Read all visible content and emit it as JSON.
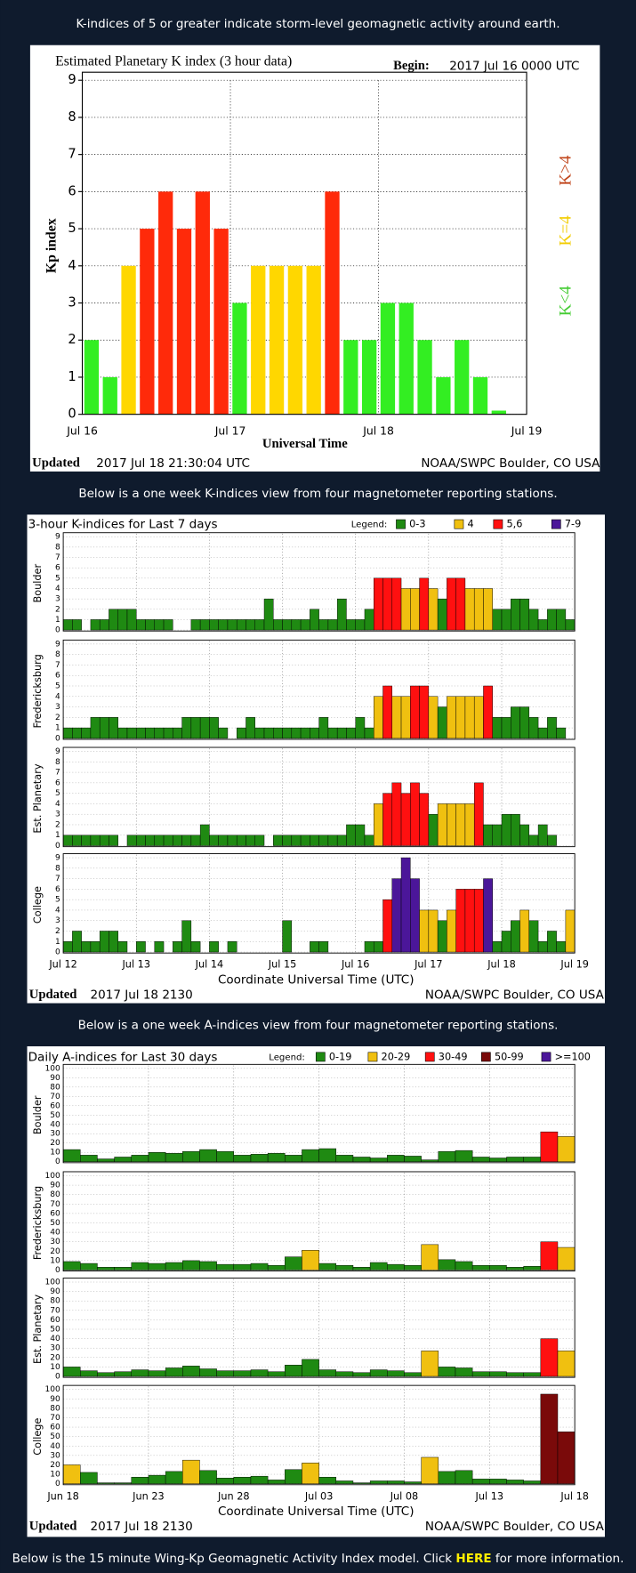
{
  "captions": [
    "K-indices of 5 or greater indicate storm-level geomagnetic activity around earth.",
    "Below is a one week K-indices view from four magnetometer reporting stations.",
    "Below is a one week A-indices view from four magnetometer reporting stations."
  ],
  "footer_note": {
    "before": "Below is the 15 minute Wing-Kp Geomagnetic Activity Index model. Click ",
    "link": "HERE",
    "after": " for more information."
  },
  "chart_data": [
    {
      "type": "bar",
      "title": "Estimated Planetary K index (3 hour data)",
      "begin_label": "Begin:",
      "begin": "2017 Jul 16 0000 UTC",
      "ylabel": "Kp index",
      "xlabel": "Universal Time",
      "xtick_labels": [
        "Jul 16",
        "Jul 17",
        "Jul 18",
        "Jul 19"
      ],
      "values": [
        2,
        1,
        4,
        5,
        6,
        5,
        6,
        5,
        3,
        4,
        4,
        4,
        4,
        6,
        2,
        2,
        3,
        3,
        2,
        1,
        2,
        1,
        0.1,
        null
      ],
      "colors": [
        "#33ee22",
        "#33ee22",
        "#ffd700",
        "#ff2a0a",
        "#ff2a0a",
        "#ff2a0a",
        "#ff2a0a",
        "#ff2a0a",
        "#33ee22",
        "#ffd700",
        "#ffd700",
        "#ffd700",
        "#ffd700",
        "#ff2a0a",
        "#33ee22",
        "#33ee22",
        "#33ee22",
        "#33ee22",
        "#33ee22",
        "#33ee22",
        "#33ee22",
        "#33ee22",
        "#33ee22",
        "#33ee22"
      ],
      "legend": [
        {
          "label": "K<4",
          "color": "#44cc33"
        },
        {
          "label": "K=4",
          "color": "#f2cc00"
        },
        {
          "label": "K>4",
          "color": "#c0441a"
        }
      ],
      "ylim": [
        0,
        9
      ],
      "yticks": [
        0,
        1,
        2,
        3,
        4,
        5,
        6,
        7,
        8,
        9
      ],
      "grid": true,
      "footer_label": "Updated",
      "footer_date": "2017 Jul 18 21:30:04 UTC",
      "footer_right": "NOAA/SWPC Boulder, CO USA"
    },
    {
      "type": "panel-bar",
      "title": "3-hour K-indices for Last 7 days",
      "legend_title": "Legend:",
      "legend": [
        {
          "label": "0-3",
          "color": "#1f8a12"
        },
        {
          "label": "4",
          "color": "#f0c010"
        },
        {
          "label": "5,6",
          "color": "#ff1010"
        },
        {
          "label": "7-9",
          "color": "#4b1699"
        }
      ],
      "xtick_labels": [
        "Jul 12",
        "Jul 13",
        "Jul 14",
        "Jul 15",
        "Jul 16",
        "Jul 17",
        "Jul 18",
        "Jul 19"
      ],
      "xlabel": "Coordinate Universal Time (UTC)",
      "ylim": [
        0,
        9
      ],
      "yticks": [
        0,
        1,
        2,
        3,
        4,
        5,
        6,
        7,
        8,
        9
      ],
      "grid": true,
      "series": [
        {
          "name": "Boulder",
          "values": [
            1,
            1,
            0,
            1,
            1,
            2,
            2,
            2,
            1,
            1,
            1,
            1,
            0,
            0,
            1,
            1,
            1,
            1,
            1,
            1,
            1,
            1,
            3,
            1,
            1,
            1,
            1,
            2,
            1,
            1,
            3,
            1,
            1,
            2,
            5,
            5,
            5,
            4,
            4,
            5,
            4,
            3,
            5,
            5,
            4,
            4,
            4,
            2,
            2,
            3,
            3,
            2,
            1,
            2,
            2,
            1
          ]
        },
        {
          "name": "Fredericksburg",
          "values": [
            1,
            1,
            1,
            2,
            2,
            2,
            1,
            1,
            1,
            1,
            1,
            1,
            1,
            2,
            2,
            2,
            2,
            1,
            0,
            1,
            2,
            1,
            1,
            1,
            1,
            1,
            1,
            1,
            2,
            1,
            1,
            1,
            2,
            1,
            4,
            5,
            4,
            4,
            5,
            5,
            4,
            3,
            4,
            4,
            4,
            4,
            5,
            2,
            2,
            3,
            3,
            2,
            1,
            2,
            1,
            0
          ]
        },
        {
          "name": "Est. Planetary",
          "values": [
            1,
            1,
            1,
            1,
            1,
            1,
            0,
            1,
            1,
            1,
            1,
            1,
            1,
            1,
            1,
            2,
            1,
            1,
            1,
            1,
            1,
            1,
            0,
            1,
            1,
            1,
            1,
            1,
            1,
            1,
            1,
            2,
            2,
            1,
            4,
            5,
            6,
            5,
            6,
            5,
            3,
            4,
            4,
            4,
            4,
            6,
            2,
            2,
            3,
            3,
            2,
            1,
            2,
            1,
            0,
            0
          ]
        },
        {
          "name": "College",
          "values": [
            1,
            2,
            1,
            1,
            2,
            2,
            1,
            0,
            1,
            0,
            1,
            0,
            1,
            3,
            1,
            0,
            1,
            0,
            1,
            0,
            0,
            0,
            0,
            0,
            3,
            0,
            0,
            1,
            1,
            0,
            0,
            0,
            0,
            1,
            1,
            5,
            7,
            9,
            7,
            4,
            4,
            3,
            4,
            6,
            6,
            6,
            7,
            1,
            2,
            3,
            4,
            3,
            1,
            2,
            1,
            4
          ]
        }
      ],
      "footer_label": "Updated",
      "footer_date": "2017 Jul 18 2130",
      "footer_right": "NOAA/SWPC Boulder, CO USA"
    },
    {
      "type": "panel-bar",
      "title": "Daily A-indices for Last 30 days",
      "legend_title": "Legend:",
      "legend": [
        {
          "label": "0-19",
          "color": "#1f8a12"
        },
        {
          "label": "20-29",
          "color": "#f0c010"
        },
        {
          "label": "30-49",
          "color": "#ff1010"
        },
        {
          "label": "50-99",
          "color": "#7a0a0a"
        },
        {
          "label": ">=100",
          "color": "#4b1699"
        }
      ],
      "xtick_labels": [
        "Jun 18",
        "Jun 23",
        "Jun 28",
        "Jul 03",
        "Jul 08",
        "Jul 13",
        "Jul 18"
      ],
      "xlabel": "Coordinate Universal Time (UTC)",
      "ylim": [
        0,
        100
      ],
      "yticks": [
        0,
        10,
        20,
        30,
        40,
        50,
        60,
        70,
        80,
        90,
        100
      ],
      "grid": true,
      "series": [
        {
          "name": "Boulder",
          "values": [
            13,
            7,
            3,
            5,
            7,
            10,
            9,
            11,
            13,
            11,
            7,
            8,
            9,
            7,
            13,
            14,
            7,
            5,
            4,
            7,
            6,
            2,
            11,
            12,
            5,
            4,
            5,
            5,
            32,
            27
          ]
        },
        {
          "name": "Fredericksburg",
          "values": [
            9,
            7,
            3,
            3,
            8,
            7,
            8,
            10,
            9,
            6,
            6,
            7,
            5,
            14,
            21,
            7,
            5,
            3,
            8,
            6,
            5,
            27,
            11,
            9,
            5,
            5,
            3,
            4,
            30,
            24
          ]
        },
        {
          "name": "Est. Planetary",
          "values": [
            10,
            6,
            4,
            5,
            7,
            6,
            9,
            11,
            8,
            6,
            6,
            7,
            5,
            12,
            18,
            7,
            5,
            4,
            7,
            6,
            4,
            27,
            10,
            9,
            5,
            5,
            4,
            4,
            40,
            27
          ]
        },
        {
          "name": "College",
          "values": [
            20,
            12,
            1,
            1,
            7,
            9,
            13,
            25,
            14,
            6,
            7,
            8,
            4,
            15,
            22,
            7,
            3,
            1,
            3,
            3,
            2,
            28,
            13,
            14,
            5,
            5,
            4,
            3,
            95,
            55
          ]
        }
      ],
      "footer_label": "Updated",
      "footer_date": "2017 Jul 18 2130",
      "footer_right": "NOAA/SWPC Boulder, CO USA"
    }
  ]
}
